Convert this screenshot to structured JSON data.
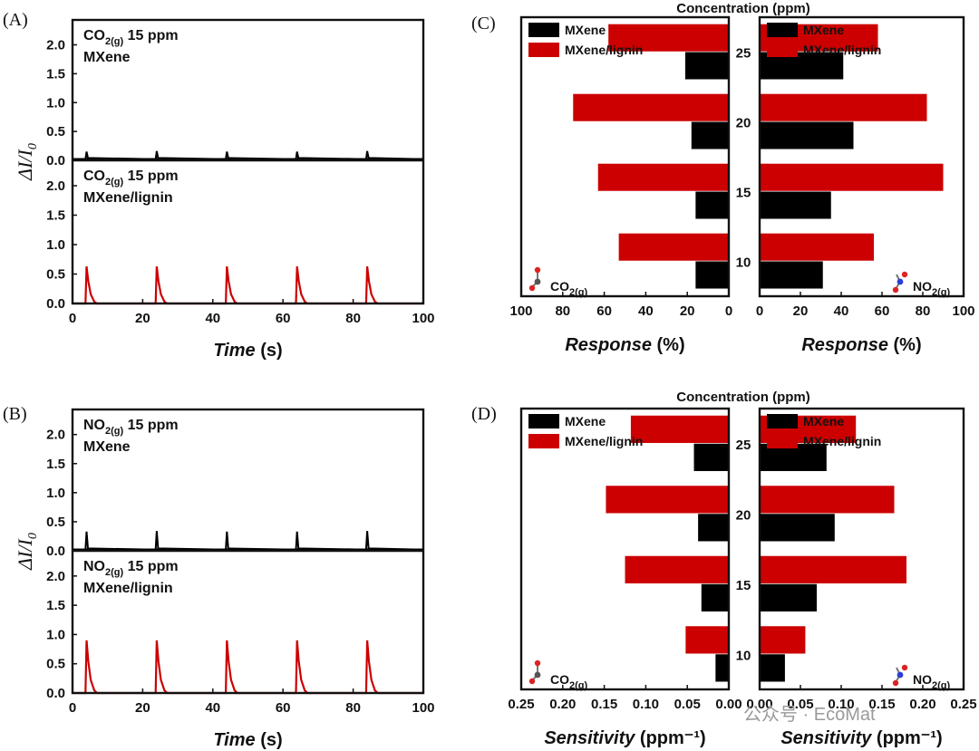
{
  "colors": {
    "mxene": "#000000",
    "lignin": "#cc0000",
    "watermark": "#9a9a9a"
  },
  "watermark": "公众号 · EcoMat",
  "chart_data": [
    {
      "id": "A",
      "type": "line",
      "panel_label": "(A)",
      "xlabel": "Time",
      "xlabel_unit": " (s)",
      "ylabel": "ΔI/I0",
      "xlim": [
        0,
        100
      ],
      "ylim": [
        0,
        2.4
      ],
      "x_ticks": [
        "0",
        "20",
        "40",
        "60",
        "80",
        "100"
      ],
      "y_ticks": [
        "0.0",
        "0.5",
        "1.0",
        "1.5",
        "2.0"
      ],
      "subplots": [
        {
          "gas": "CO",
          "gas_sub": "2(g)",
          "conc": " 15 ppm",
          "material": "MXene",
          "series": "MXene",
          "peak_times": [
            4,
            24,
            44,
            64,
            84
          ],
          "peak_heights": [
            0.15,
            0.16,
            0.15,
            0.15,
            0.16
          ],
          "baseline": 0.02
        },
        {
          "gas": "CO",
          "gas_sub": "2(g)",
          "conc": " 15 ppm",
          "material": "MXene/lignin",
          "series": "MXene/lignin",
          "peak_times": [
            4,
            24,
            44,
            64,
            84
          ],
          "peak_heights": [
            0.63,
            0.63,
            0.63,
            0.63,
            0.63
          ],
          "baseline": 0.0
        }
      ]
    },
    {
      "id": "B",
      "type": "line",
      "panel_label": "(B)",
      "xlabel": "Time",
      "xlabel_unit": " (s)",
      "ylabel": "ΔI/I0",
      "xlim": [
        0,
        100
      ],
      "ylim": [
        0,
        2.4
      ],
      "x_ticks": [
        "0",
        "20",
        "40",
        "60",
        "80",
        "100"
      ],
      "y_ticks": [
        "0.0",
        "0.5",
        "1.0",
        "1.5",
        "2.0"
      ],
      "subplots": [
        {
          "gas": "NO",
          "gas_sub": "2(g)",
          "conc": " 15 ppm",
          "material": "MXene",
          "series": "MXene",
          "peak_times": [
            4,
            24,
            44,
            64,
            84
          ],
          "peak_heights": [
            0.33,
            0.34,
            0.33,
            0.33,
            0.34
          ],
          "baseline": 0.02
        },
        {
          "gas": "NO",
          "gas_sub": "2(g)",
          "conc": " 15 ppm",
          "material": "MXene/lignin",
          "series": "MXene/lignin",
          "peak_times": [
            4,
            24,
            44,
            64,
            84
          ],
          "peak_heights": [
            0.9,
            0.9,
            0.9,
            0.9,
            0.9
          ],
          "baseline": 0.0
        }
      ]
    },
    {
      "id": "C",
      "type": "bar",
      "orientation": "horizontal",
      "panel_label": "(C)",
      "top_label": "Concentration (ppm)",
      "categories": [
        "25",
        "20",
        "15",
        "10"
      ],
      "legend": [
        "MXene",
        "MXene/lignin"
      ],
      "left": {
        "gas": "CO",
        "gas_sub": "2(g)",
        "xlim": [
          100,
          0
        ],
        "x_ticks": [
          "100",
          "80",
          "60",
          "40",
          "20",
          "0"
        ],
        "xlabel": "Response",
        "xlabel_unit": " (%)",
        "series": [
          {
            "name": "MXene/lignin",
            "values": [
              58,
              75,
              63,
              53
            ]
          },
          {
            "name": "MXene",
            "values": [
              21,
              18,
              16,
              16
            ]
          }
        ]
      },
      "right": {
        "gas": "NO",
        "gas_sub": "2(g)",
        "xlim": [
          0,
          100
        ],
        "x_ticks": [
          "0",
          "20",
          "40",
          "60",
          "80",
          "100"
        ],
        "xlabel": "Response",
        "xlabel_unit": " (%)",
        "series": [
          {
            "name": "MXene/lignin",
            "values": [
              58,
              82,
              90,
              56
            ]
          },
          {
            "name": "MXene",
            "values": [
              41,
              46,
              35,
              31
            ]
          }
        ]
      }
    },
    {
      "id": "D",
      "type": "bar",
      "orientation": "horizontal",
      "panel_label": "(D)",
      "top_label": "Concentration (ppm)",
      "categories": [
        "25",
        "20",
        "15",
        "10"
      ],
      "legend": [
        "MXene",
        "MXene/lignin"
      ],
      "left": {
        "gas": "CO",
        "gas_sub": "2(g)",
        "xlim": [
          0.25,
          0
        ],
        "x_ticks": [
          "0.25",
          "0.20",
          "0.15",
          "0.10",
          "0.05",
          "0.00"
        ],
        "xlabel": "Sensitivity",
        "xlabel_unit": " (ppm⁻¹)",
        "series": [
          {
            "name": "MXene/lignin",
            "values": [
              0.118,
              0.148,
              0.125,
              0.052
            ]
          },
          {
            "name": "MXene",
            "values": [
              0.042,
              0.037,
              0.033,
              0.016
            ]
          }
        ]
      },
      "right": {
        "gas": "NO",
        "gas_sub": "2(g)",
        "xlim": [
          0,
          0.25
        ],
        "x_ticks": [
          "0.00",
          "0.05",
          "0.10",
          "0.15",
          "0.20",
          "0.25"
        ],
        "xlabel": "Sensitivity",
        "xlabel_unit": " (ppm⁻¹)",
        "series": [
          {
            "name": "MXene/lignin",
            "values": [
              0.118,
              0.165,
              0.18,
              0.056
            ]
          },
          {
            "name": "MXene",
            "values": [
              0.082,
              0.092,
              0.07,
              0.031
            ]
          }
        ]
      }
    }
  ]
}
